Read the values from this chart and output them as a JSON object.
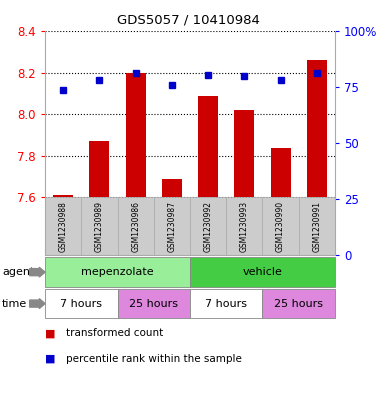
{
  "title": "GDS5057 / 10410984",
  "samples": [
    "GSM1230988",
    "GSM1230989",
    "GSM1230986",
    "GSM1230987",
    "GSM1230992",
    "GSM1230993",
    "GSM1230990",
    "GSM1230991"
  ],
  "transformed_counts": [
    7.61,
    7.87,
    8.2,
    7.69,
    8.09,
    8.02,
    7.84,
    8.26
  ],
  "percentile_ranks": [
    65,
    71,
    75,
    68,
    74,
    73,
    71,
    75
  ],
  "ylim_left": [
    7.6,
    8.4
  ],
  "ylim_right": [
    0,
    100
  ],
  "yticks_left": [
    7.6,
    7.8,
    8.0,
    8.2,
    8.4
  ],
  "yticks_right": [
    0,
    25,
    50,
    75,
    100
  ],
  "bar_color": "#cc0000",
  "dot_color": "#0000cc",
  "agent_groups": [
    {
      "label": "mepenzolate",
      "span": [
        0,
        4
      ],
      "color": "#99ee99"
    },
    {
      "label": "vehicle",
      "span": [
        4,
        8
      ],
      "color": "#44cc44"
    }
  ],
  "time_groups": [
    {
      "label": "7 hours",
      "span": [
        0,
        2
      ],
      "color": "#ffffff"
    },
    {
      "label": "25 hours",
      "span": [
        2,
        4
      ],
      "color": "#dd88dd"
    },
    {
      "label": "7 hours",
      "span": [
        4,
        6
      ],
      "color": "#ffffff"
    },
    {
      "label": "25 hours",
      "span": [
        6,
        8
      ],
      "color": "#dd88dd"
    }
  ],
  "legend_bar_label": "transformed count",
  "legend_dot_label": "percentile rank within the sample",
  "row_label_agent": "agent",
  "row_label_time": "time",
  "bg_color": "#ffffff",
  "sample_bg_color": "#cccccc",
  "sample_border_color": "#aaaaaa"
}
